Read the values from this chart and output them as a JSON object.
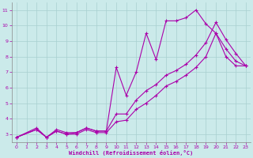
{
  "xlabel": "Windchill (Refroidissement éolien,°C)",
  "background_color": "#cbeaea",
  "grid_color": "#a8d0d0",
  "line_color": "#aa00aa",
  "xlim": [
    -0.5,
    23.5
  ],
  "ylim": [
    2.5,
    11.5
  ],
  "xticks": [
    0,
    1,
    2,
    3,
    4,
    5,
    6,
    7,
    8,
    9,
    10,
    11,
    12,
    13,
    14,
    15,
    16,
    17,
    18,
    19,
    20,
    21,
    22,
    23
  ],
  "yticks": [
    3,
    4,
    5,
    6,
    7,
    8,
    9,
    10,
    11
  ],
  "line1_x": [
    0,
    2,
    3,
    4,
    5,
    6,
    7,
    8,
    9,
    10,
    11,
    12,
    13,
    14,
    15,
    16,
    17,
    18,
    19,
    20,
    21,
    22,
    23
  ],
  "line1_y": [
    2.8,
    3.3,
    2.8,
    3.2,
    3.0,
    3.1,
    3.4,
    3.2,
    3.2,
    7.3,
    5.5,
    7.0,
    9.5,
    7.8,
    10.3,
    10.3,
    10.5,
    11.0,
    10.1,
    9.5,
    8.0,
    7.4,
    7.4
  ],
  "line2_x": [
    0,
    2,
    3,
    4,
    5,
    6,
    7,
    8,
    9,
    10,
    11,
    12,
    13,
    14,
    15,
    16,
    17,
    18,
    19,
    20,
    21,
    22,
    23
  ],
  "line2_y": [
    2.8,
    3.4,
    2.8,
    3.3,
    3.1,
    3.1,
    3.4,
    3.2,
    3.2,
    4.3,
    4.3,
    5.2,
    5.8,
    6.2,
    6.8,
    7.1,
    7.5,
    8.1,
    8.9,
    10.2,
    9.1,
    8.2,
    7.4
  ],
  "line3_x": [
    0,
    2,
    3,
    4,
    5,
    6,
    7,
    8,
    9,
    10,
    11,
    12,
    13,
    14,
    15,
    16,
    17,
    18,
    19,
    20,
    21,
    22,
    23
  ],
  "line3_y": [
    2.8,
    3.3,
    2.8,
    3.2,
    3.0,
    3.0,
    3.3,
    3.1,
    3.1,
    3.8,
    3.9,
    4.6,
    5.0,
    5.5,
    6.1,
    6.4,
    6.8,
    7.3,
    8.0,
    9.5,
    8.5,
    7.7,
    7.4
  ],
  "marker_size": 3.5,
  "line_width": 0.8
}
